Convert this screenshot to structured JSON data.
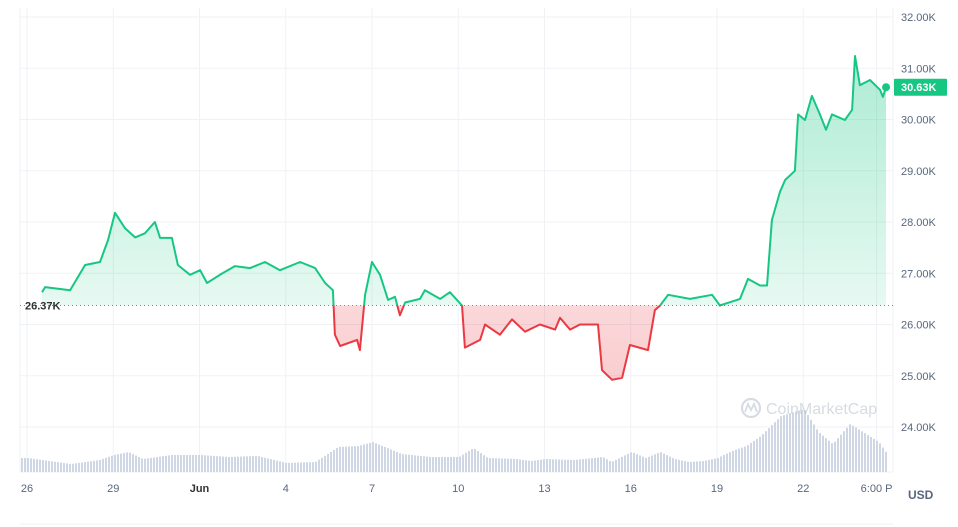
{
  "chart_data": {
    "type": "line",
    "title": "",
    "currency_label": "USD",
    "x_unit": "days since May 26",
    "x_ticks": [
      {
        "day": 0,
        "label": "26"
      },
      {
        "day": 3,
        "label": "29"
      },
      {
        "day": 6,
        "label": "Jun"
      },
      {
        "day": 9,
        "label": "4"
      },
      {
        "day": 12,
        "label": "7"
      },
      {
        "day": 15,
        "label": "10"
      },
      {
        "day": 18,
        "label": "13"
      },
      {
        "day": 21,
        "label": "16"
      },
      {
        "day": 24,
        "label": "19"
      },
      {
        "day": 27,
        "label": "22"
      },
      {
        "day": 29.55,
        "label": "6:00 P"
      }
    ],
    "y_ticks": [
      {
        "value": 32,
        "label": "32.00K"
      },
      {
        "value": 31,
        "label": "31.00K"
      },
      {
        "value": 30,
        "label": "30.00K"
      },
      {
        "value": 29,
        "label": "29.00K"
      },
      {
        "value": 28,
        "label": "28.00K"
      },
      {
        "value": 27,
        "label": "27.00K"
      },
      {
        "value": 26,
        "label": "26.00K"
      },
      {
        "value": 25,
        "label": "25.00K"
      },
      {
        "value": 24,
        "label": "24.00K"
      }
    ],
    "ylim": [
      23.1,
      32.3
    ],
    "xlim": [
      0,
      30
    ],
    "baseline": {
      "value": 26.37,
      "label": "26.37K"
    },
    "current": {
      "value": 30.63,
      "label": "30.63K"
    },
    "colors": {
      "up": "#16c784",
      "down": "#ea3943",
      "volume": "#cfd6e4",
      "grid": "#eff2f5"
    },
    "watermark": "CoinMarketCap",
    "price_series": [
      [
        0.52,
        26.63
      ],
      [
        0.63,
        26.73
      ],
      [
        1.5,
        26.67
      ],
      [
        2.02,
        27.16
      ],
      [
        2.54,
        27.22
      ],
      [
        2.82,
        27.65
      ],
      [
        3.06,
        28.18
      ],
      [
        3.41,
        27.88
      ],
      [
        3.76,
        27.7
      ],
      [
        4.1,
        27.78
      ],
      [
        4.45,
        28.0
      ],
      [
        4.63,
        27.69
      ],
      [
        5.04,
        27.69
      ],
      [
        5.25,
        27.16
      ],
      [
        5.67,
        26.97
      ],
      [
        6.02,
        27.06
      ],
      [
        6.26,
        26.81
      ],
      [
        6.71,
        26.97
      ],
      [
        7.23,
        27.14
      ],
      [
        7.76,
        27.1
      ],
      [
        8.28,
        27.22
      ],
      [
        8.8,
        27.06
      ],
      [
        9.5,
        27.22
      ],
      [
        10.02,
        27.1
      ],
      [
        10.37,
        26.81
      ],
      [
        10.64,
        26.67
      ],
      [
        10.71,
        25.8
      ],
      [
        10.89,
        25.58
      ],
      [
        11.48,
        25.7
      ],
      [
        11.58,
        25.5
      ],
      [
        11.76,
        26.58
      ],
      [
        12.0,
        27.22
      ],
      [
        12.28,
        26.97
      ],
      [
        12.56,
        26.48
      ],
      [
        12.8,
        26.54
      ],
      [
        12.97,
        26.18
      ],
      [
        13.15,
        26.43
      ],
      [
        13.67,
        26.5
      ],
      [
        13.84,
        26.67
      ],
      [
        14.37,
        26.5
      ],
      [
        14.71,
        26.63
      ],
      [
        15.13,
        26.37
      ],
      [
        15.23,
        25.55
      ],
      [
        15.76,
        25.7
      ],
      [
        15.93,
        26.0
      ],
      [
        16.45,
        25.8
      ],
      [
        16.87,
        26.1
      ],
      [
        17.32,
        25.86
      ],
      [
        17.84,
        26.0
      ],
      [
        18.37,
        25.9
      ],
      [
        18.54,
        26.13
      ],
      [
        18.89,
        25.9
      ],
      [
        19.23,
        26.0
      ],
      [
        19.86,
        26.0
      ],
      [
        20.0,
        25.11
      ],
      [
        20.35,
        24.92
      ],
      [
        20.7,
        24.96
      ],
      [
        20.97,
        25.6
      ],
      [
        21.6,
        25.5
      ],
      [
        21.84,
        26.28
      ],
      [
        22.02,
        26.37
      ],
      [
        22.3,
        26.58
      ],
      [
        23.06,
        26.5
      ],
      [
        23.83,
        26.58
      ],
      [
        24.1,
        26.37
      ],
      [
        24.8,
        26.5
      ],
      [
        25.08,
        26.89
      ],
      [
        25.5,
        26.76
      ],
      [
        25.74,
        26.76
      ],
      [
        25.91,
        28.04
      ],
      [
        26.19,
        28.59
      ],
      [
        26.37,
        28.82
      ],
      [
        26.71,
        29.0
      ],
      [
        26.82,
        30.1
      ],
      [
        27.06,
        29.99
      ],
      [
        27.3,
        30.46
      ],
      [
        27.58,
        30.1
      ],
      [
        27.79,
        29.8
      ],
      [
        28.0,
        30.1
      ],
      [
        28.45,
        29.99
      ],
      [
        28.7,
        30.19
      ],
      [
        28.8,
        31.24
      ],
      [
        28.97,
        30.67
      ],
      [
        29.32,
        30.77
      ],
      [
        29.67,
        30.58
      ],
      [
        29.77,
        30.44
      ],
      [
        29.88,
        30.63
      ]
    ],
    "volume_relative": [
      [
        0,
        14
      ],
      [
        1.5,
        8
      ],
      [
        2.5,
        12
      ],
      [
        3,
        17
      ],
      [
        3.5,
        20
      ],
      [
        4,
        13
      ],
      [
        5,
        17
      ],
      [
        6,
        17
      ],
      [
        7,
        15
      ],
      [
        8,
        16
      ],
      [
        9,
        9
      ],
      [
        10,
        10
      ],
      [
        10.8,
        25
      ],
      [
        11.5,
        26
      ],
      [
        12,
        30
      ],
      [
        12.5,
        24
      ],
      [
        13,
        18
      ],
      [
        14,
        15
      ],
      [
        15,
        15
      ],
      [
        15.5,
        24
      ],
      [
        16,
        14
      ],
      [
        17,
        13
      ],
      [
        17.5,
        11
      ],
      [
        18,
        13
      ],
      [
        19,
        12
      ],
      [
        20,
        15
      ],
      [
        20.3,
        10
      ],
      [
        21,
        20
      ],
      [
        21.5,
        14
      ],
      [
        22,
        20
      ],
      [
        22.5,
        13
      ],
      [
        23,
        10
      ],
      [
        23.5,
        11
      ],
      [
        24,
        14
      ],
      [
        24.5,
        21
      ],
      [
        25,
        26
      ],
      [
        25.5,
        36
      ],
      [
        26.2,
        56
      ],
      [
        27,
        63
      ],
      [
        27.5,
        40
      ],
      [
        28,
        28
      ],
      [
        28.6,
        48
      ],
      [
        29.6,
        30
      ],
      [
        29.9,
        18
      ]
    ]
  }
}
